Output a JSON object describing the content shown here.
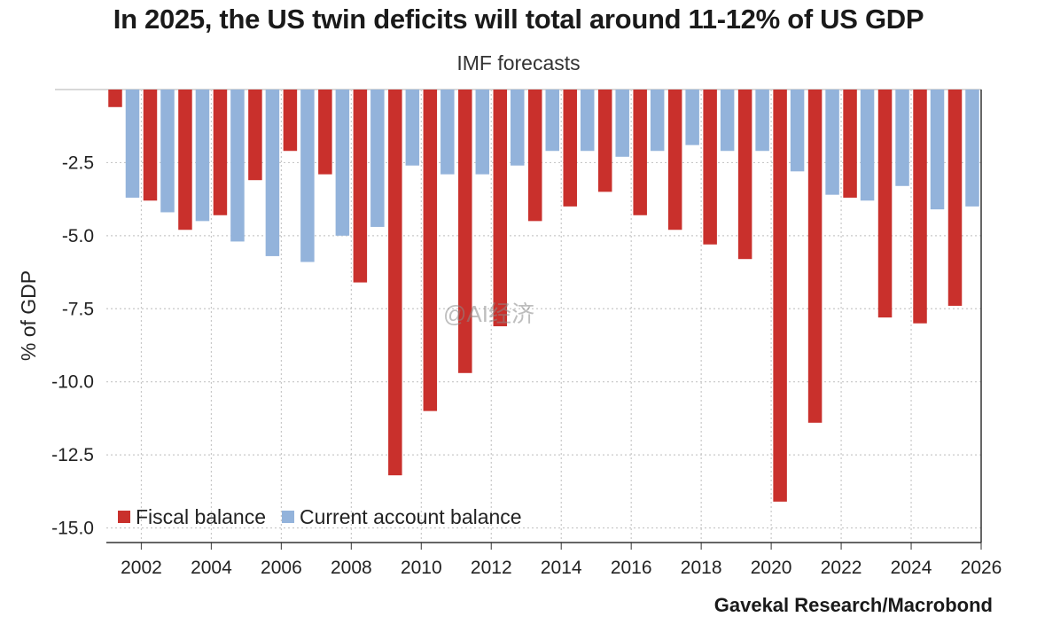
{
  "chart_data": {
    "type": "bar",
    "title": "In 2025, the US twin deficits will total around 11-12% of US GDP",
    "subtitle": "IMF forecasts",
    "ylabel": "% of GDP",
    "xlabel": "",
    "ylim": [
      -15.5,
      0
    ],
    "yticks": [
      "-2.5",
      "-5.0",
      "-7.5",
      "-10.0",
      "-12.5",
      "-15.0"
    ],
    "ytick_values": [
      -2.5,
      -5.0,
      -7.5,
      -10.0,
      -12.5,
      -15.0
    ],
    "xticks": [
      "2002",
      "2004",
      "2006",
      "2008",
      "2010",
      "2012",
      "2014",
      "2016",
      "2018",
      "2020",
      "2022",
      "2024",
      "2026"
    ],
    "categories": [
      "2001",
      "2002",
      "2003",
      "2004",
      "2005",
      "2006",
      "2007",
      "2008",
      "2009",
      "2010",
      "2011",
      "2012",
      "2013",
      "2014",
      "2015",
      "2016",
      "2017",
      "2018",
      "2019",
      "2020",
      "2021",
      "2022",
      "2023",
      "2024",
      "2025"
    ],
    "series": [
      {
        "name": "Fiscal balance",
        "color": "#c9302c",
        "values": [
          -0.6,
          -3.8,
          -4.8,
          -4.3,
          -3.1,
          -2.1,
          -2.9,
          -6.6,
          -13.2,
          -11.0,
          -9.7,
          -8.1,
          -4.5,
          -4.0,
          -3.5,
          -4.3,
          -4.8,
          -5.3,
          -5.8,
          -14.1,
          -11.4,
          -3.7,
          -7.8,
          -8.0,
          -7.4
        ]
      },
      {
        "name": "Current account balance",
        "color": "#93b3db",
        "values": [
          -3.7,
          -4.2,
          -4.5,
          -5.2,
          -5.7,
          -5.9,
          -5.0,
          -4.7,
          -2.6,
          -2.9,
          -2.9,
          -2.6,
          -2.1,
          -2.1,
          -2.3,
          -2.1,
          -1.9,
          -2.1,
          -2.1,
          -2.8,
          -3.6,
          -3.8,
          -3.3,
          -4.1,
          -4.0
        ]
      }
    ],
    "legend": {
      "position": "bottom-left"
    },
    "grid": true
  },
  "watermark": "@AI经济",
  "source": "Gavekal Research/Macrobond"
}
